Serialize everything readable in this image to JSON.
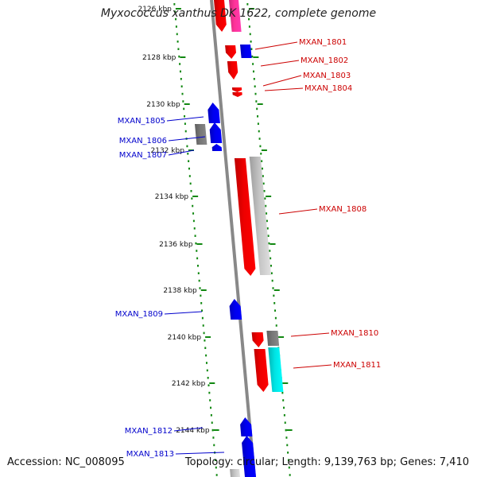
{
  "title": "Myxococcus xanthus DK 1622, complete genome",
  "footer": {
    "accession": "Accession: NC_008095",
    "topology": "Topology: circular; Length: 9,139,763 bp; Genes: 7,410"
  },
  "colors": {
    "forward_strand_gene": "#ee0000",
    "reverse_strand_gene": "#0000ee",
    "forward_label": "#cc0000",
    "reverse_label": "#0000cc",
    "ruler_ticks": "#118811",
    "backbone": "#888888",
    "feature_gray": "#c4c4c4",
    "feature_dark_gray": "#777777",
    "feature_cyan": "#00e4e4",
    "feature_magenta": "#ff3399"
  },
  "ruler": {
    "unit": "kbp",
    "tick_labels": [
      "2126 kbp",
      "2128 kbp",
      "2130 kbp",
      "2132 kbp",
      "2134 kbp",
      "2136 kbp",
      "2138 kbp",
      "2140 kbp",
      "2142 kbp",
      "2144 kbp"
    ]
  },
  "genes": {
    "forward": [
      "MXAN_1801",
      "MXAN_1802",
      "MXAN_1803",
      "MXAN_1804",
      "MXAN_1808",
      "MXAN_1810",
      "MXAN_1811"
    ],
    "reverse": [
      "MXAN_1805",
      "MXAN_1806",
      "MXAN_1807",
      "MXAN_1809",
      "MXAN_1812",
      "MXAN_1813"
    ]
  }
}
